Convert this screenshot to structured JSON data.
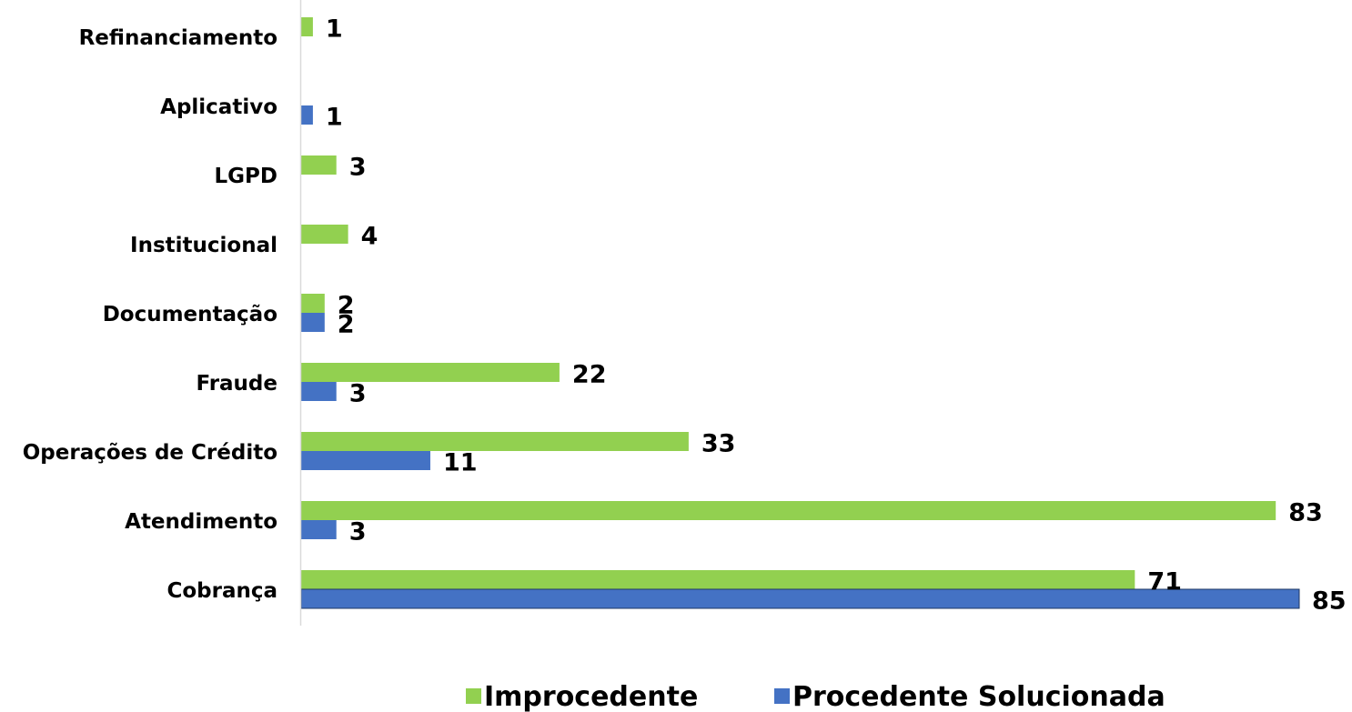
{
  "chart_data": {
    "type": "bar",
    "orientation": "horizontal",
    "title": "",
    "xlabel": "",
    "ylabel": "",
    "categories": [
      "Refinanciamento",
      "Aplicativo",
      "LGPD",
      "Institucional",
      "Documentação",
      "Fraude",
      "Operações de Crédito",
      "Atendimento",
      "Cobrança"
    ],
    "series": [
      {
        "name": "Improcedente",
        "color": "#92d050",
        "values": [
          1,
          null,
          3,
          4,
          2,
          22,
          33,
          83,
          71
        ]
      },
      {
        "name": "Procedente Solucionada",
        "color": "#4472c4",
        "values": [
          null,
          1,
          null,
          null,
          2,
          3,
          11,
          3,
          85
        ]
      }
    ],
    "xlim": [
      0,
      85
    ],
    "grid": false,
    "legend_position": "bottom",
    "data_labels": true
  }
}
